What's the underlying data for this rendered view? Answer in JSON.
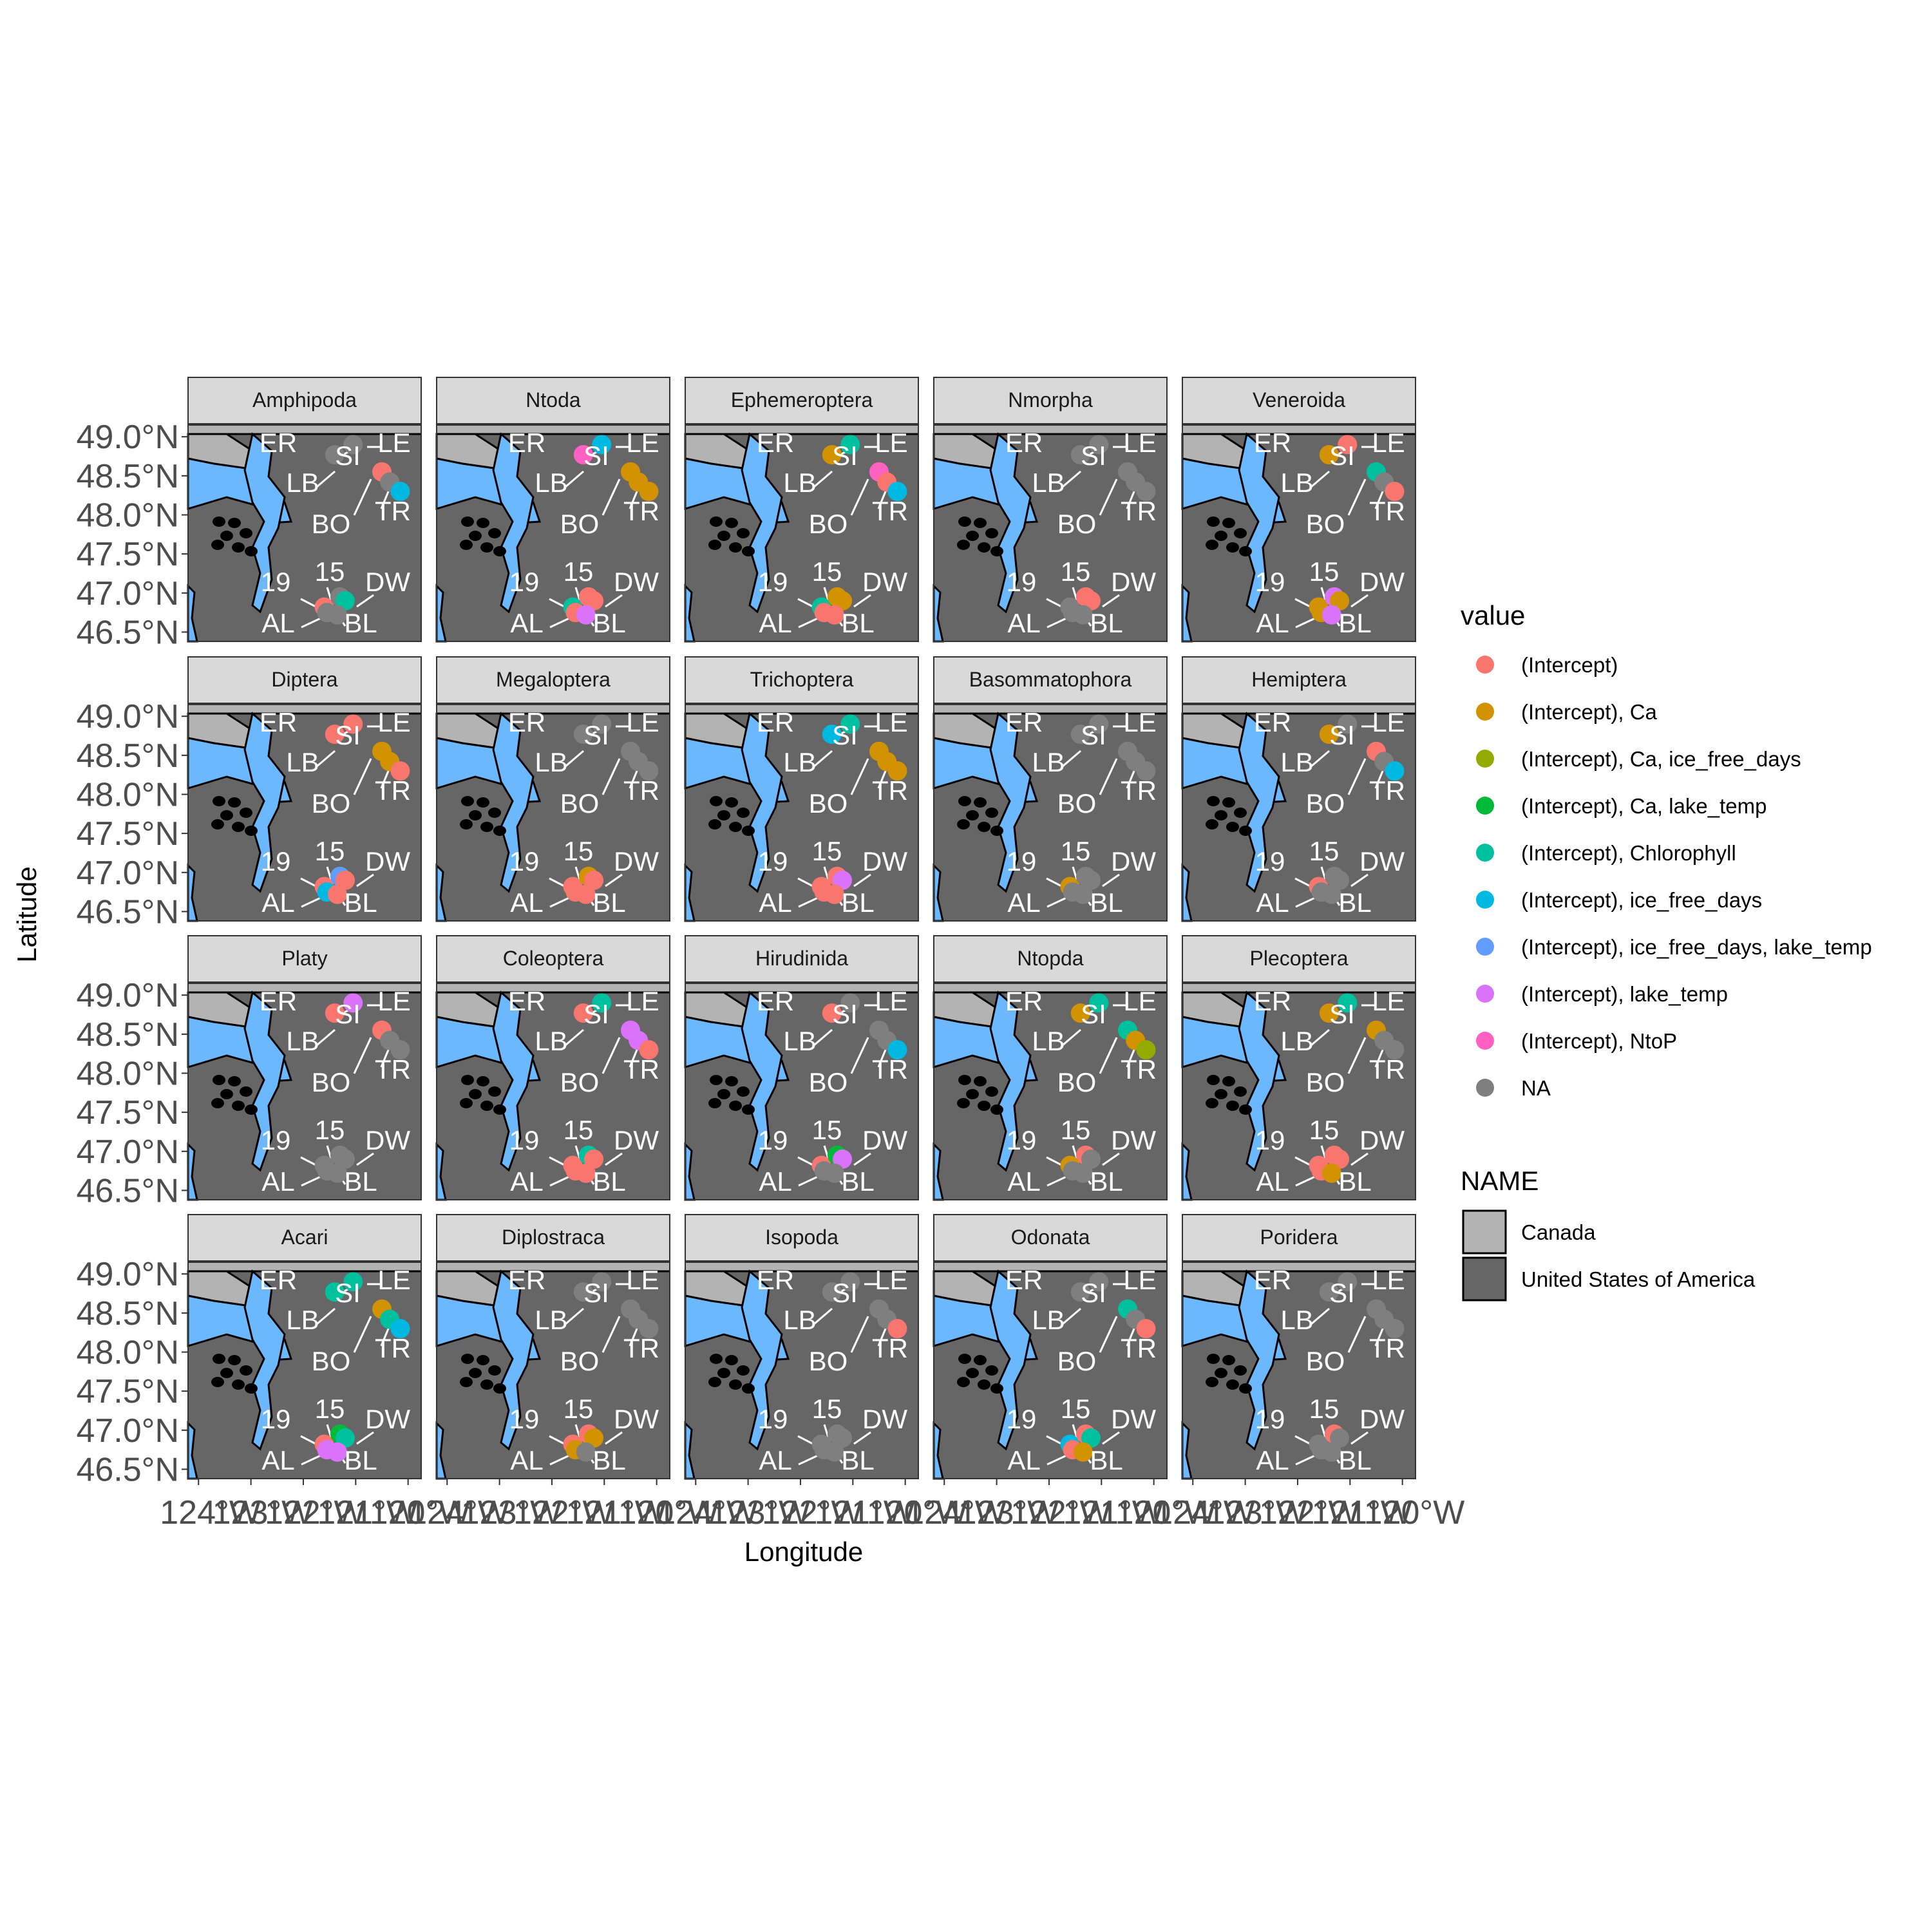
{
  "chart_data": {
    "type": "map",
    "xlabel": "Longitude",
    "ylabel": "Latitude",
    "y_ticks": [
      "49.0°N",
      "48.5°N",
      "48.0°N",
      "47.5°N",
      "47.0°N",
      "46.5°N"
    ],
    "x_ticks": [
      "124°W",
      "123°W",
      "122°W",
      "121°W",
      "120°W"
    ],
    "lakes": [
      {
        "code": "ER",
        "lon": -121.4,
        "lat": 48.77
      },
      {
        "code": "SI",
        "lon": -121.05,
        "lat": 48.9
      },
      {
        "code": "LE",
        "lon": -120.5,
        "lat": 48.55
      },
      {
        "code": "BO",
        "lon": -120.35,
        "lat": 48.42
      },
      {
        "code": "TR",
        "lon": -120.15,
        "lat": 48.3
      },
      {
        "code": "19",
        "lon": -121.6,
        "lat": 46.82
      },
      {
        "code": "15",
        "lon": -121.3,
        "lat": 46.95
      },
      {
        "code": "DW",
        "lon": -121.2,
        "lat": 46.9
      },
      {
        "code": "AL",
        "lon": -121.55,
        "lat": 46.75
      },
      {
        "code": "BL",
        "lon": -121.35,
        "lat": 46.72
      }
    ],
    "panels": [
      {
        "title": "Amphipoda",
        "values": [
          "NA",
          "NA",
          "(Intercept)",
          "NA",
          "(Intercept), ice_free_days",
          "(Intercept)",
          "NA",
          "(Intercept), Chlorophyll",
          "NA",
          "NA"
        ]
      },
      {
        "title": "Ntoda",
        "values": [
          "(Intercept), NtoP",
          "(Intercept), ice_free_days",
          "(Intercept), Ca",
          "(Intercept), Ca",
          "(Intercept), Ca",
          "(Intercept), Chlorophyll",
          "(Intercept)",
          "(Intercept)",
          "(Intercept)",
          "(Intercept), lake_temp"
        ]
      },
      {
        "title": "Ephemeroptera",
        "values": [
          "(Intercept), Ca",
          "(Intercept), Chlorophyll",
          "(Intercept), NtoP",
          "(Intercept)",
          "(Intercept), ice_free_days",
          "(Intercept), Chlorophyll",
          "(Intercept), Ca",
          "(Intercept), Ca",
          "(Intercept)",
          "(Intercept)"
        ]
      },
      {
        "title": "Nmorpha",
        "values": [
          "NA",
          "NA",
          "NA",
          "NA",
          "NA",
          "NA",
          "(Intercept)",
          "(Intercept)",
          "NA",
          "NA"
        ]
      },
      {
        "title": "Veneroida",
        "values": [
          "(Intercept), Ca",
          "(Intercept)",
          "(Intercept), Chlorophyll",
          "NA",
          "(Intercept)",
          "(Intercept), Ca",
          "(Intercept), lake_temp",
          "(Intercept), Ca",
          "(Intercept), Ca",
          "(Intercept), lake_temp"
        ]
      },
      {
        "title": "Diptera",
        "values": [
          "(Intercept)",
          "(Intercept)",
          "(Intercept), Ca",
          "(Intercept), Ca",
          "(Intercept)",
          "(Intercept)",
          "(Intercept), ice_free_days, lake_temp",
          "(Intercept)",
          "(Intercept), ice_free_days",
          "(Intercept)"
        ]
      },
      {
        "title": "Megaloptera",
        "values": [
          "NA",
          "NA",
          "NA",
          "NA",
          "NA",
          "(Intercept)",
          "(Intercept), Ca",
          "(Intercept)",
          "(Intercept)",
          "(Intercept)"
        ]
      },
      {
        "title": "Trichoptera",
        "values": [
          "(Intercept), ice_free_days",
          "(Intercept), Chlorophyll",
          "(Intercept), Ca",
          "(Intercept), Ca",
          "(Intercept), Ca",
          "(Intercept)",
          "(Intercept)",
          "(Intercept), lake_temp",
          "(Intercept)",
          "(Intercept)"
        ]
      },
      {
        "title": "Basommatophora",
        "values": [
          "NA",
          "NA",
          "NA",
          "NA",
          "NA",
          "(Intercept), Ca",
          "NA",
          "NA",
          "NA",
          "NA"
        ]
      },
      {
        "title": "Hemiptera",
        "values": [
          "(Intercept), Ca",
          "NA",
          "(Intercept)",
          "NA",
          "(Intercept), ice_free_days",
          "(Intercept)",
          "NA",
          "NA",
          "NA",
          "NA"
        ]
      },
      {
        "title": "Platy",
        "values": [
          "(Intercept)",
          "(Intercept), lake_temp",
          "(Intercept)",
          "NA",
          "NA",
          "NA",
          "NA",
          "NA",
          "NA",
          "NA"
        ]
      },
      {
        "title": "Coleoptera",
        "values": [
          "(Intercept)",
          "(Intercept), Chlorophyll",
          "(Intercept), lake_temp",
          "(Intercept), lake_temp",
          "(Intercept)",
          "(Intercept)",
          "(Intercept), Chlorophyll",
          "(Intercept)",
          "(Intercept)",
          "(Intercept)"
        ]
      },
      {
        "title": "Hirudinida",
        "values": [
          "(Intercept)",
          "NA",
          "NA",
          "NA",
          "(Intercept), ice_free_days",
          "(Intercept)",
          "(Intercept), Ca, lake_temp",
          "(Intercept), lake_temp",
          "NA",
          "NA"
        ]
      },
      {
        "title": "Ntopda",
        "values": [
          "(Intercept), Ca",
          "(Intercept), Chlorophyll",
          "(Intercept), Chlorophyll",
          "(Intercept), Ca",
          "(Intercept), Ca, ice_free_days",
          "(Intercept), Ca",
          "(Intercept)",
          "NA",
          "NA",
          "NA"
        ]
      },
      {
        "title": "Plecoptera",
        "values": [
          "(Intercept), Ca",
          "(Intercept), Chlorophyll",
          "(Intercept), Ca",
          "NA",
          "NA",
          "(Intercept)",
          "(Intercept)",
          "(Intercept)",
          "(Intercept)",
          "(Intercept), Ca"
        ]
      },
      {
        "title": "Acari",
        "values": [
          "(Intercept), Chlorophyll",
          "(Intercept), Chlorophyll",
          "(Intercept), Ca",
          "(Intercept), Chlorophyll",
          "(Intercept), ice_free_days",
          "(Intercept)",
          "(Intercept), Ca, lake_temp",
          "(Intercept), Chlorophyll",
          "(Intercept), lake_temp",
          "(Intercept), lake_temp"
        ]
      },
      {
        "title": "Diplostraca",
        "values": [
          "NA",
          "NA",
          "NA",
          "NA",
          "NA",
          "(Intercept)",
          "(Intercept)",
          "(Intercept), Ca",
          "(Intercept), Ca",
          "NA"
        ]
      },
      {
        "title": "Isopoda",
        "values": [
          "NA",
          "NA",
          "NA",
          "NA",
          "(Intercept)",
          "NA",
          "NA",
          "NA",
          "NA",
          "NA"
        ]
      },
      {
        "title": "Odonata",
        "values": [
          "NA",
          "NA",
          "(Intercept), Chlorophyll",
          "NA",
          "(Intercept)",
          "(Intercept), ice_free_days",
          "(Intercept)",
          "(Intercept), Chlorophyll",
          "(Intercept)",
          "(Intercept), Ca"
        ]
      },
      {
        "title": "Poridera",
        "values": [
          "NA",
          "NA",
          "NA",
          "NA",
          "NA",
          "NA",
          "(Intercept)",
          "NA",
          "NA",
          "NA"
        ]
      }
    ],
    "legend_value": {
      "title": "value",
      "entries": [
        {
          "label": "(Intercept)",
          "color": "#F8766D"
        },
        {
          "label": "(Intercept), Ca",
          "color": "#D39200"
        },
        {
          "label": "(Intercept), Ca, ice_free_days",
          "color": "#93AA00"
        },
        {
          "label": "(Intercept), Ca, lake_temp",
          "color": "#00BA38"
        },
        {
          "label": "(Intercept), Chlorophyll",
          "color": "#00C19F"
        },
        {
          "label": "(Intercept), ice_free_days",
          "color": "#00B9E3"
        },
        {
          "label": "(Intercept), ice_free_days, lake_temp",
          "color": "#619CFF"
        },
        {
          "label": "(Intercept), lake_temp",
          "color": "#DB72FB"
        },
        {
          "label": "(Intercept), NtoP",
          "color": "#FF61C3"
        },
        {
          "label": "NA",
          "color": "#7F7F7F"
        }
      ]
    },
    "legend_name": {
      "title": "NAME",
      "entries": [
        {
          "label": "Canada",
          "color": "#B3B3B3"
        },
        {
          "label": "United States of America",
          "color": "#666666"
        }
      ]
    },
    "colors": {
      "water": "#6BB8FF",
      "usa": "#666666",
      "canada": "#B3B3B3",
      "strip": "#D9D9D9"
    }
  }
}
